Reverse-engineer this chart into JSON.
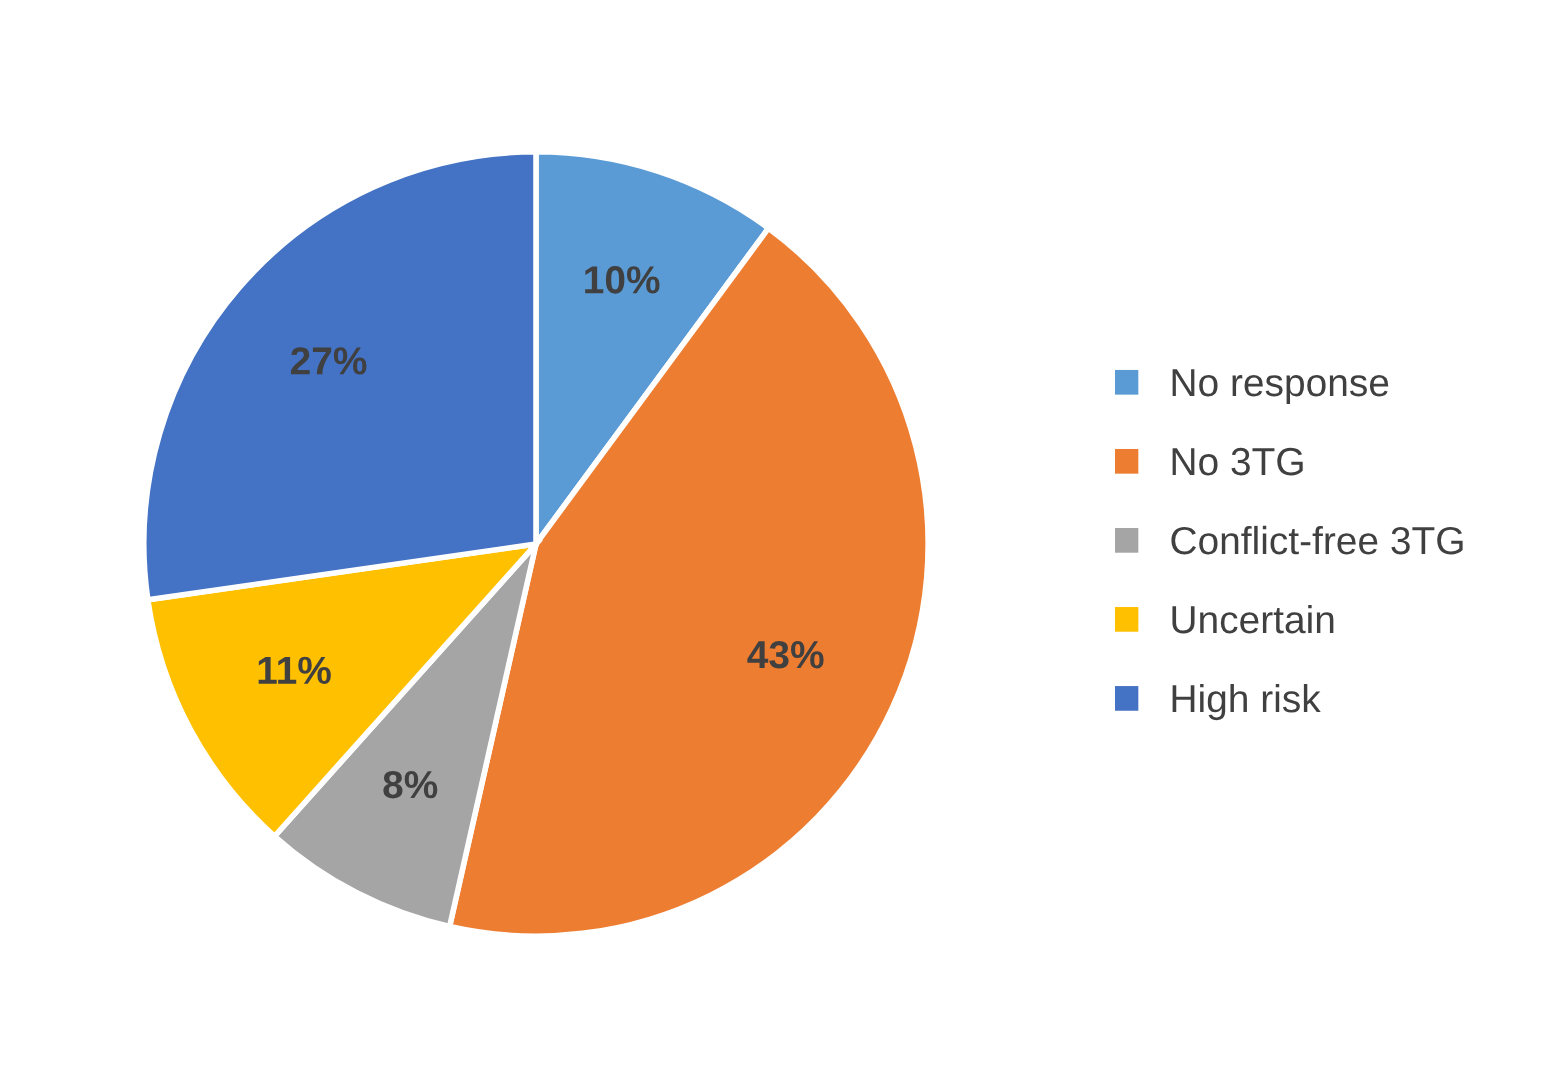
{
  "chart_data": {
    "type": "pie",
    "categories": [
      "No response",
      "No 3TG",
      "Conflict-free 3TG",
      "Uncertain",
      "High risk"
    ],
    "values": [
      10,
      43,
      8,
      11,
      27
    ],
    "colors": [
      "#5b9bd5",
      "#ed7d31",
      "#a5a5a5",
      "#ffc000",
      "#4472c4"
    ],
    "value_labels": [
      "10%",
      "43%",
      "8%",
      "11%",
      "27%"
    ],
    "legend": "right"
  }
}
